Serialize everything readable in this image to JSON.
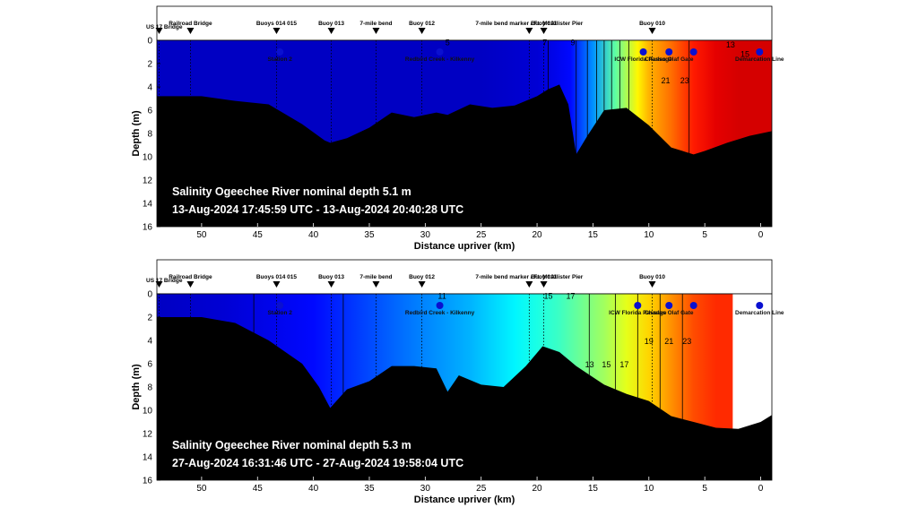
{
  "chart_data": [
    {
      "type": "heatmap",
      "info_line1": "Salinity Ogeechee River nominal depth 5.1 m",
      "info_line2": "13-Aug-2024 17:45:59 UTC - 13-Aug-2024 20:40:28 UTC",
      "xlabel": "Distance upriver (km)",
      "ylabel": "Depth (m)",
      "xlim": [
        54,
        -1
      ],
      "ylim": [
        0,
        16
      ],
      "xticks": [
        50,
        45,
        40,
        35,
        30,
        25,
        20,
        15,
        10,
        5,
        0
      ],
      "yticks": [
        0,
        2,
        4,
        6,
        8,
        10,
        12,
        14,
        16
      ],
      "landmarks": [
        {
          "label": "US 17 Bridge",
          "km": 53.8
        },
        {
          "label": "Railroad Bridge",
          "km": 51.0
        },
        {
          "label": "Buoys 014 015",
          "km": 43.3
        },
        {
          "label": "Buoy 013",
          "km": 38.4
        },
        {
          "label": "7-mile bend",
          "km": 34.4
        },
        {
          "label": "Buoy 012",
          "km": 30.3
        },
        {
          "label": "7-mile bend marker / Ft. McAllister Pier",
          "km": 20.7
        },
        {
          "label": "Buoy 011",
          "km": 19.4
        },
        {
          "label": "Buoy 010",
          "km": 9.7
        }
      ],
      "stations": [
        {
          "label": "Station 2",
          "km": 43.0,
          "depth": 1.0
        },
        {
          "label": "Redbird Creek - Kilkenny",
          "km": 28.7,
          "depth": 1.0
        },
        {
          "label": "ICW Florida Passage",
          "km": 10.5,
          "depth": 1.0
        },
        {
          "label": "Charles Olaf Gate",
          "km": 8.2,
          "depth": 1.0
        },
        {
          "label": "",
          "km": 6.0,
          "depth": 1.0
        },
        {
          "label": "Demarcation Line",
          "km": 0.1,
          "depth": 1.0
        }
      ],
      "contour_labels": [
        {
          "text": "13",
          "km": 2.7,
          "depth": 0.3
        },
        {
          "text": "15",
          "km": 1.4,
          "depth": 1.1
        },
        {
          "text": "21",
          "km": 8.5,
          "depth": 3.4
        },
        {
          "text": "23",
          "km": 6.8,
          "depth": 3.4
        },
        {
          "text": "5",
          "km": 28.0,
          "depth": 0.1
        },
        {
          "text": "7",
          "km": 19.3,
          "depth": 0.1
        },
        {
          "text": "9",
          "km": 16.8,
          "depth": 0.1
        }
      ],
      "salinity_profile": {
        "km": [
          54,
          45,
          35,
          25,
          20,
          17,
          15,
          13,
          11,
          10,
          8,
          6,
          4,
          2,
          0
        ],
        "salinity": [
          2,
          2,
          2,
          2,
          2.5,
          4,
          8,
          14,
          19,
          21,
          23,
          25.5,
          27,
          27.5,
          27.5
        ]
      },
      "bathymetry": {
        "km": [
          54,
          50,
          47,
          44,
          41,
          39,
          38.5,
          37,
          35,
          33,
          31,
          29,
          28,
          26,
          24,
          22,
          20,
          19,
          18,
          17.2,
          16.5,
          15.5,
          14,
          12,
          10,
          8,
          6,
          5,
          3,
          1,
          -1
        ],
        "depth": [
          4.8,
          4.8,
          5.2,
          5.5,
          7.2,
          8.6,
          8.8,
          8.4,
          7.5,
          6.2,
          6.6,
          6.2,
          6.4,
          5.5,
          5.8,
          5.6,
          4.8,
          4.2,
          3.8,
          5.5,
          9.8,
          8.2,
          6.0,
          5.8,
          7.3,
          9.2,
          9.8,
          9.5,
          8.8,
          8.2,
          7.8
        ]
      }
    },
    {
      "type": "heatmap",
      "info_line1": "Salinity Ogeechee River nominal depth 5.3 m",
      "info_line2": "27-Aug-2024 16:31:46 UTC - 27-Aug-2024 19:58:04 UTC",
      "xlabel": "Distance upriver (km)",
      "ylabel": "Depth (m)",
      "xlim": [
        54,
        -1
      ],
      "ylim": [
        0,
        16
      ],
      "xticks": [
        50,
        45,
        40,
        35,
        30,
        25,
        20,
        15,
        10,
        5,
        0
      ],
      "yticks": [
        0,
        2,
        4,
        6,
        8,
        10,
        12,
        14,
        16
      ],
      "landmarks": [
        {
          "label": "US 17 Bridge",
          "km": 53.8
        },
        {
          "label": "Railroad Bridge",
          "km": 51.0
        },
        {
          "label": "Buoys 014 015",
          "km": 43.3
        },
        {
          "label": "Buoy 013",
          "km": 38.4
        },
        {
          "label": "7-mile bend",
          "km": 34.4
        },
        {
          "label": "Buoy 012",
          "km": 30.3
        },
        {
          "label": "7-mile bend marker / Ft. McAllister Pier",
          "km": 20.7
        },
        {
          "label": "Buoy 011",
          "km": 19.4
        },
        {
          "label": "Buoy 010",
          "km": 9.7
        }
      ],
      "stations": [
        {
          "label": "Station 2",
          "km": 43.0,
          "depth": 1.0
        },
        {
          "label": "Redbird Creek - Kilkenny",
          "km": 28.7,
          "depth": 1.0
        },
        {
          "label": "ICW Florida Passage",
          "km": 11.0,
          "depth": 1.0
        },
        {
          "label": "Charles Olaf Gate",
          "km": 8.2,
          "depth": 1.0
        },
        {
          "label": "",
          "km": 6.0,
          "depth": 1.0
        },
        {
          "label": "Demarcation Line",
          "km": 0.1,
          "depth": 1.0
        }
      ],
      "contour_labels": [
        {
          "text": "13",
          "km": 15.3,
          "depth": 6.0
        },
        {
          "text": "15",
          "km": 13.8,
          "depth": 6.0
        },
        {
          "text": "17",
          "km": 12.2,
          "depth": 6.0
        },
        {
          "text": "19",
          "km": 10.0,
          "depth": 4.0
        },
        {
          "text": "21",
          "km": 8.2,
          "depth": 4.0
        },
        {
          "text": "23",
          "km": 6.6,
          "depth": 4.0
        },
        {
          "text": "11",
          "km": 28.5,
          "depth": 0.1
        },
        {
          "text": "15",
          "km": 19.0,
          "depth": 0.1
        },
        {
          "text": "17",
          "km": 17.0,
          "depth": 0.1
        }
      ],
      "salinity_profile": {
        "km": [
          54,
          48,
          40,
          32,
          26,
          22,
          20,
          18,
          16,
          14,
          12,
          10,
          8,
          6,
          4,
          3,
          2.5
        ],
        "salinity": [
          2,
          2.5,
          4,
          7,
          9,
          11,
          12,
          13,
          14.5,
          16,
          18,
          20,
          22,
          24,
          25,
          25,
          25
        ]
      },
      "data_limit_km": 2.5,
      "bathymetry": {
        "km": [
          54,
          50,
          47,
          44,
          41,
          39.5,
          38.5,
          37,
          35,
          33,
          31,
          29,
          28,
          27,
          25,
          23,
          21,
          19.5,
          18,
          16.5,
          14,
          12,
          10,
          8,
          6,
          4,
          2,
          0,
          -1
        ],
        "depth": [
          2.0,
          2.0,
          2.5,
          4.0,
          6.0,
          8.0,
          9.8,
          8.2,
          7.5,
          6.2,
          6.2,
          6.4,
          8.4,
          7.0,
          7.8,
          8.0,
          6.2,
          4.5,
          5.0,
          6.2,
          7.8,
          8.6,
          9.2,
          10.5,
          11.0,
          11.5,
          11.6,
          11.0,
          10.4
        ]
      }
    }
  ]
}
